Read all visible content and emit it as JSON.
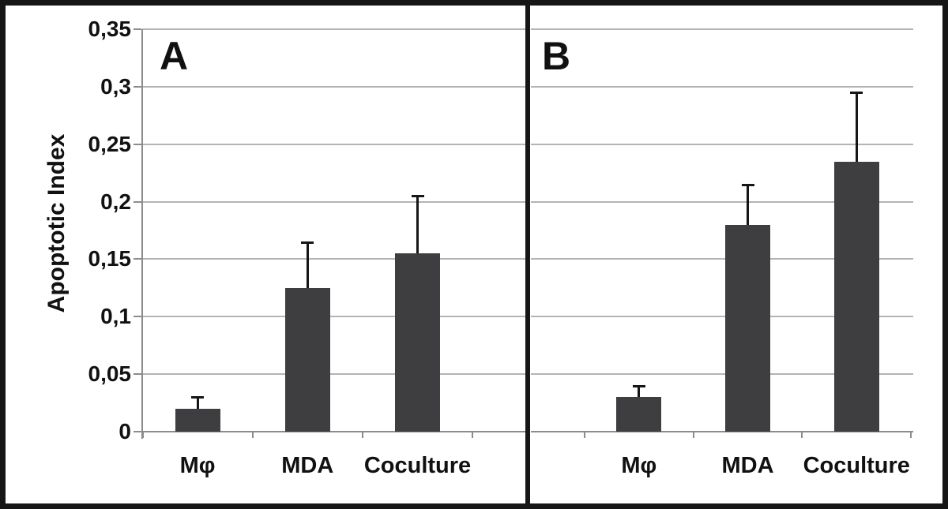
{
  "figure": {
    "ylabel": "Apoptotic Index"
  },
  "colors": {
    "bar": "#3e3e40",
    "gridline": "#b4b4b4",
    "axis": "#8c8c8c",
    "error_bar": "#161616",
    "frame": "#161616",
    "text": "#111111",
    "background": "#ffffff"
  },
  "chart_data": [
    {
      "type": "bar",
      "panel_label": "A",
      "title": "",
      "xlabel": "",
      "ylabel": "Apoptotic Index",
      "categories": [
        "Mφ",
        "MDA",
        "Coculture"
      ],
      "values": [
        0.02,
        0.125,
        0.155
      ],
      "errors_plus": [
        0.01,
        0.04,
        0.05
      ],
      "ylim": [
        0,
        0.35
      ],
      "ytick_values": [
        0,
        0.05,
        0.1,
        0.15,
        0.2,
        0.25,
        0.3,
        0.35
      ],
      "ytick_labels": [
        "0",
        "0,05",
        "0,1",
        "0,15",
        "0,2",
        "0,25",
        "0,3",
        "0,35"
      ],
      "grid": true,
      "legend_position": "none"
    },
    {
      "type": "bar",
      "panel_label": "B",
      "title": "",
      "xlabel": "",
      "ylabel": "Apoptotic Index",
      "categories": [
        "Mφ",
        "MDA",
        "Coculture"
      ],
      "values": [
        0.03,
        0.18,
        0.235
      ],
      "errors_plus": [
        0.01,
        0.035,
        0.06
      ],
      "ylim": [
        0,
        0.35
      ],
      "ytick_values": [
        0,
        0.05,
        0.1,
        0.15,
        0.2,
        0.25,
        0.3,
        0.35
      ],
      "ytick_labels": [
        "0",
        "0,05",
        "0,1",
        "0,15",
        "0,2",
        "0,25",
        "0,3",
        "0,35"
      ],
      "grid": true,
      "legend_position": "none"
    }
  ]
}
